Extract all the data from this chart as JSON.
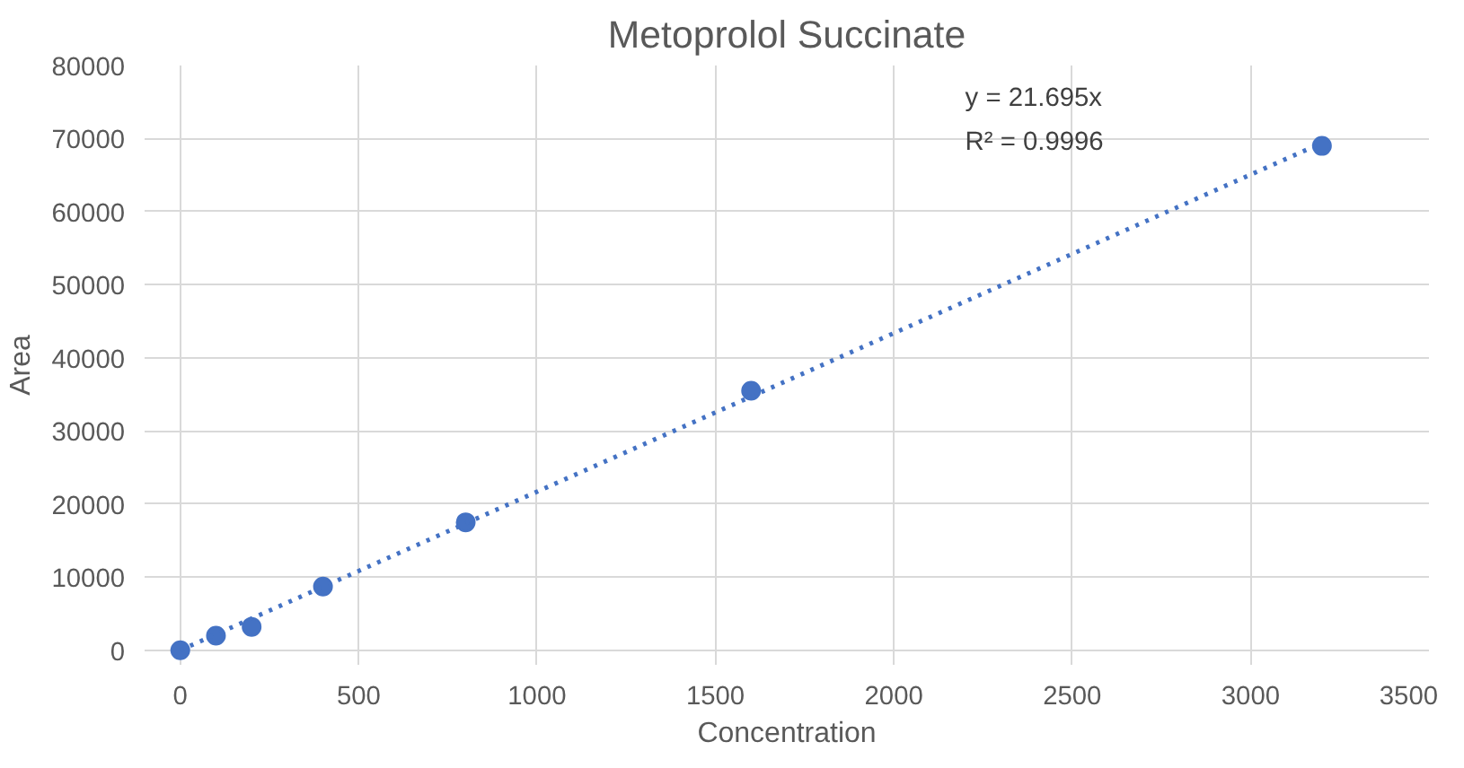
{
  "chart_data": {
    "type": "scatter",
    "title": "Metoprolol Succinate",
    "xlabel": "Concentration",
    "ylabel": "Area",
    "x": [
      0,
      100,
      200,
      400,
      800,
      1600,
      3200
    ],
    "series": [
      {
        "color": "#4472c4",
        "marker": "circle",
        "values": [
          0,
          2000,
          3200,
          8700,
          17500,
          35500,
          69000
        ]
      },
      {
        "type": "line",
        "color": "#4472c4",
        "line_style": "dotted",
        "marker": "none",
        "x": [
          0,
          3200
        ],
        "values": [
          0,
          69400
        ]
      }
    ],
    "annotations": [
      "y = 21.695x",
      "R² = 0.9996"
    ],
    "xlim": [
      -100,
      3500
    ],
    "xticks": [
      0,
      500,
      1000,
      1500,
      2000,
      2500,
      3000,
      3500
    ],
    "ylim": [
      -2000,
      80000
    ],
    "yticks": [
      0,
      10000,
      20000,
      30000,
      40000,
      50000,
      60000,
      70000,
      80000
    ],
    "grid": true
  }
}
